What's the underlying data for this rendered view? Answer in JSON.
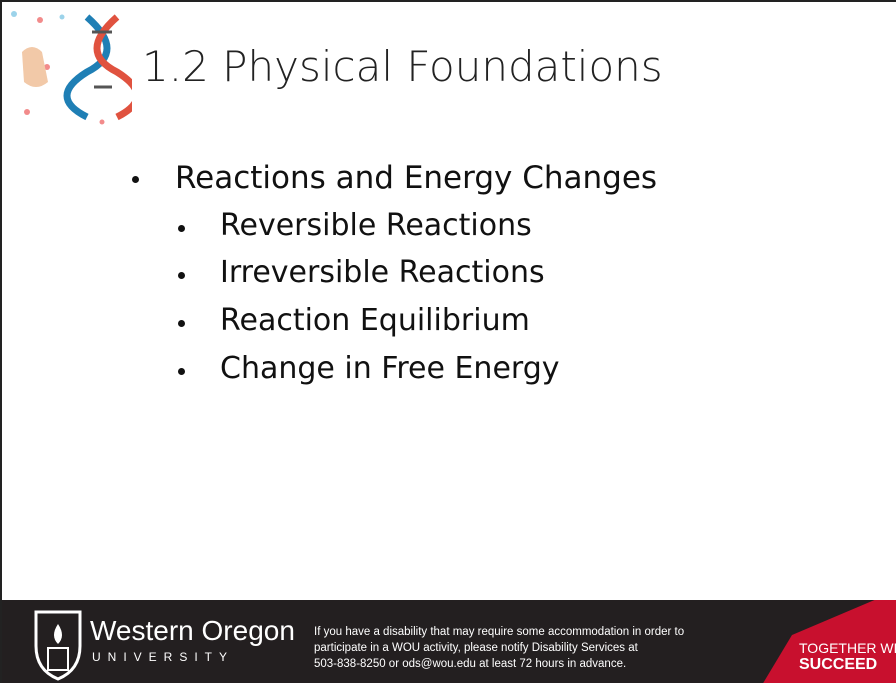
{
  "header": {
    "title": "1.2 Physical Foundations"
  },
  "bullets": {
    "items": [
      {
        "text": "Reactions and Energy Changes",
        "subitems": [
          "Reversible Reactions",
          "Irreversible Reactions",
          "Reaction Equilibrium",
          "Change in Free Energy"
        ]
      }
    ]
  },
  "footer": {
    "logo_name": "Western Oregon",
    "logo_sub": "UNIVERSITY",
    "notice": [
      "If you have a disability that may require some accommodation in order to",
      "participate in a WOU activity, please notify Disability Services at",
      "503-838-8250 or ods@wou.edu at least 72 hours in advance."
    ],
    "tagline": [
      "TOGETHER WE",
      "SUCCEED"
    ]
  }
}
